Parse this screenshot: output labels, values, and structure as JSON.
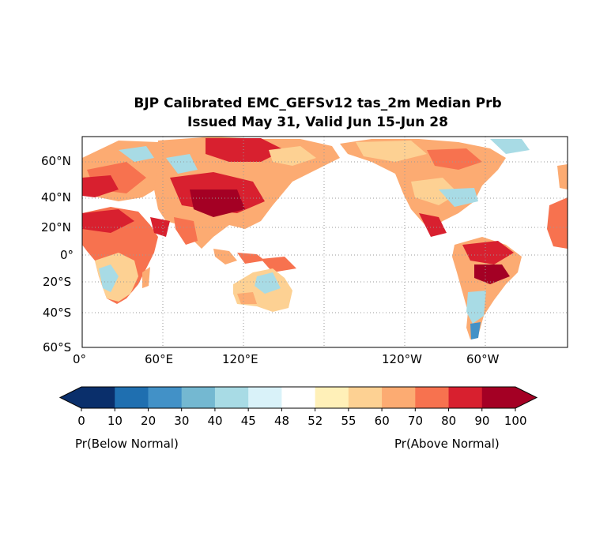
{
  "title": {
    "line1": "BJP Calibrated EMC_GEFSv12 tas_2m Median Prb",
    "line2": "Issued May 31, Valid Jun 15-Jun 28"
  },
  "map": {
    "projection": "plate carree, centered 180",
    "gridlines": true,
    "lat_ticks": [
      "60°N",
      "40°N",
      "20°N",
      "0°",
      "20°S",
      "40°S",
      "60°S"
    ],
    "lon_ticks": [
      "0°",
      "60°E",
      "120°E",
      "120°W",
      "60°W"
    ]
  },
  "colorbar": {
    "extend": "both",
    "levels": [
      "0",
      "10",
      "20",
      "30",
      "40",
      "45",
      "48",
      "52",
      "55",
      "60",
      "70",
      "80",
      "90",
      "100"
    ],
    "colors": [
      "#0a2f6b",
      "#1f6fb0",
      "#4291c7",
      "#74b8d1",
      "#a8dbe5",
      "#d9f2f9",
      "#ffffff",
      "#fff0b8",
      "#fdd193",
      "#fcab72",
      "#f7724f",
      "#d8202f",
      "#a40024"
    ],
    "label_left": "Pr(Below Normal)",
    "label_right": "Pr(Above Normal)"
  }
}
